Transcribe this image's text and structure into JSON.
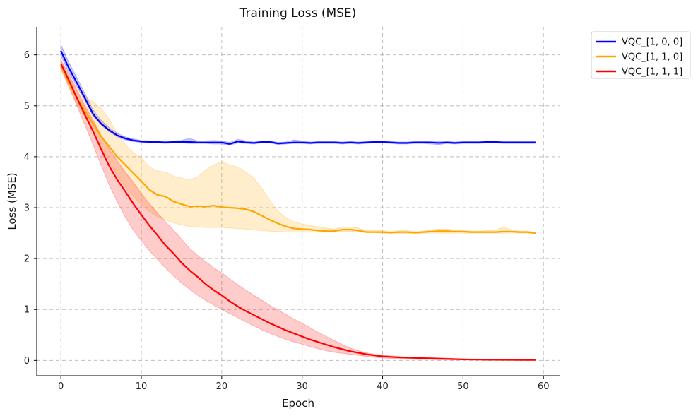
{
  "chart_data": {
    "type": "line",
    "title": "Training Loss (MSE)",
    "xlabel": "Epoch",
    "ylabel": "Loss (MSE)",
    "xlim": [
      -3,
      62
    ],
    "ylim": [
      -0.3,
      6.55
    ],
    "xticks": [
      0,
      10,
      20,
      30,
      40,
      50,
      60
    ],
    "yticks": [
      0,
      1,
      2,
      3,
      4,
      5,
      6
    ],
    "grid": true,
    "legend_position": "outside-top-right",
    "x": [
      0,
      1,
      2,
      3,
      4,
      5,
      6,
      7,
      8,
      9,
      10,
      11,
      12,
      13,
      14,
      15,
      16,
      17,
      18,
      19,
      20,
      21,
      22,
      23,
      24,
      25,
      26,
      27,
      28,
      29,
      30,
      31,
      32,
      33,
      34,
      35,
      36,
      37,
      38,
      39,
      40,
      41,
      42,
      43,
      44,
      45,
      46,
      47,
      48,
      49,
      50,
      51,
      52,
      53,
      54,
      55,
      56,
      57,
      58,
      59
    ],
    "series": [
      {
        "name": "VQC_[1, 0, 0]",
        "color": "#0000ff",
        "values": [
          6.08,
          5.74,
          5.45,
          5.15,
          4.84,
          4.65,
          4.52,
          4.42,
          4.36,
          4.32,
          4.3,
          4.29,
          4.29,
          4.28,
          4.29,
          4.29,
          4.29,
          4.28,
          4.28,
          4.28,
          4.28,
          4.25,
          4.3,
          4.28,
          4.27,
          4.29,
          4.29,
          4.26,
          4.27,
          4.28,
          4.28,
          4.27,
          4.28,
          4.28,
          4.28,
          4.27,
          4.28,
          4.27,
          4.28,
          4.29,
          4.29,
          4.28,
          4.27,
          4.27,
          4.28,
          4.28,
          4.28,
          4.27,
          4.28,
          4.27,
          4.28,
          4.28,
          4.28,
          4.29,
          4.29,
          4.28,
          4.28,
          4.28,
          4.28,
          4.28
        ],
        "lower": [
          5.98,
          5.65,
          5.38,
          5.1,
          4.8,
          4.62,
          4.49,
          4.39,
          4.33,
          4.3,
          4.28,
          4.27,
          4.27,
          4.26,
          4.27,
          4.27,
          4.26,
          4.26,
          4.26,
          4.25,
          4.25,
          4.23,
          4.27,
          4.26,
          4.25,
          4.27,
          4.27,
          4.24,
          4.25,
          4.26,
          4.26,
          4.25,
          4.26,
          4.26,
          4.26,
          4.25,
          4.26,
          4.25,
          4.26,
          4.27,
          4.27,
          4.26,
          4.25,
          4.25,
          4.26,
          4.26,
          4.25,
          4.24,
          4.26,
          4.25,
          4.26,
          4.26,
          4.26,
          4.27,
          4.27,
          4.26,
          4.26,
          4.26,
          4.26,
          4.26
        ],
        "upper": [
          6.2,
          5.85,
          5.55,
          5.24,
          4.92,
          4.72,
          4.57,
          4.46,
          4.39,
          4.35,
          4.32,
          4.31,
          4.31,
          4.3,
          4.31,
          4.32,
          4.36,
          4.31,
          4.31,
          4.32,
          4.31,
          4.28,
          4.34,
          4.31,
          4.29,
          4.31,
          4.31,
          4.28,
          4.29,
          4.33,
          4.31,
          4.29,
          4.3,
          4.3,
          4.3,
          4.29,
          4.3,
          4.29,
          4.3,
          4.31,
          4.31,
          4.3,
          4.29,
          4.29,
          4.3,
          4.3,
          4.31,
          4.3,
          4.3,
          4.29,
          4.3,
          4.3,
          4.3,
          4.31,
          4.31,
          4.3,
          4.3,
          4.3,
          4.3,
          4.3
        ]
      },
      {
        "name": "VQC_[1, 1, 0]",
        "color": "#ffa500",
        "values": [
          5.8,
          5.45,
          5.15,
          4.9,
          4.65,
          4.4,
          4.2,
          4.0,
          3.84,
          3.68,
          3.52,
          3.35,
          3.25,
          3.22,
          3.12,
          3.07,
          3.02,
          3.03,
          3.02,
          3.04,
          3.01,
          3.0,
          2.99,
          2.97,
          2.92,
          2.84,
          2.76,
          2.69,
          2.63,
          2.59,
          2.58,
          2.57,
          2.55,
          2.54,
          2.54,
          2.57,
          2.57,
          2.55,
          2.52,
          2.52,
          2.52,
          2.51,
          2.52,
          2.52,
          2.51,
          2.52,
          2.53,
          2.54,
          2.54,
          2.53,
          2.53,
          2.52,
          2.52,
          2.52,
          2.52,
          2.53,
          2.53,
          2.52,
          2.52,
          2.5
        ],
        "lower": [
          5.72,
          5.35,
          5.05,
          4.78,
          4.5,
          4.2,
          3.92,
          3.62,
          3.4,
          3.22,
          3.06,
          2.92,
          2.82,
          2.76,
          2.7,
          2.66,
          2.63,
          2.62,
          2.61,
          2.61,
          2.61,
          2.6,
          2.59,
          2.58,
          2.56,
          2.55,
          2.54,
          2.53,
          2.52,
          2.52,
          2.52,
          2.52,
          2.52,
          2.52,
          2.52,
          2.53,
          2.53,
          2.52,
          2.51,
          2.51,
          2.5,
          2.5,
          2.5,
          2.49,
          2.49,
          2.5,
          2.5,
          2.5,
          2.5,
          2.5,
          2.5,
          2.5,
          2.5,
          2.5,
          2.5,
          2.5,
          2.51,
          2.5,
          2.5,
          2.49
        ],
        "upper": [
          5.88,
          5.58,
          5.34,
          5.18,
          5.08,
          4.95,
          4.74,
          4.45,
          4.24,
          4.08,
          3.98,
          3.8,
          3.72,
          3.7,
          3.62,
          3.58,
          3.55,
          3.6,
          3.74,
          3.84,
          3.9,
          3.84,
          3.8,
          3.7,
          3.58,
          3.38,
          3.14,
          2.93,
          2.8,
          2.72,
          2.68,
          2.65,
          2.62,
          2.6,
          2.58,
          2.62,
          2.62,
          2.6,
          2.55,
          2.55,
          2.55,
          2.53,
          2.55,
          2.55,
          2.53,
          2.54,
          2.56,
          2.58,
          2.58,
          2.56,
          2.56,
          2.54,
          2.54,
          2.55,
          2.55,
          2.62,
          2.57,
          2.54,
          2.54,
          2.52
        ]
      },
      {
        "name": "VQC_[1, 1, 1]",
        "color": "#ff0000",
        "values": [
          5.83,
          5.5,
          5.15,
          4.82,
          4.5,
          4.15,
          3.82,
          3.55,
          3.32,
          3.08,
          2.86,
          2.65,
          2.46,
          2.26,
          2.1,
          1.92,
          1.77,
          1.64,
          1.5,
          1.38,
          1.28,
          1.16,
          1.06,
          0.97,
          0.89,
          0.81,
          0.73,
          0.66,
          0.59,
          0.53,
          0.47,
          0.41,
          0.36,
          0.31,
          0.26,
          0.22,
          0.18,
          0.15,
          0.12,
          0.1,
          0.08,
          0.07,
          0.06,
          0.055,
          0.05,
          0.045,
          0.04,
          0.035,
          0.03,
          0.025,
          0.02,
          0.018,
          0.016,
          0.014,
          0.013,
          0.012,
          0.011,
          0.01,
          0.01,
          0.01
        ],
        "lower": [
          5.75,
          5.38,
          5.0,
          4.62,
          4.24,
          3.84,
          3.45,
          3.12,
          2.82,
          2.56,
          2.35,
          2.16,
          1.98,
          1.82,
          1.66,
          1.52,
          1.4,
          1.28,
          1.18,
          1.09,
          1.0,
          0.92,
          0.84,
          0.76,
          0.68,
          0.6,
          0.53,
          0.47,
          0.41,
          0.36,
          0.32,
          0.27,
          0.23,
          0.19,
          0.16,
          0.14,
          0.12,
          0.1,
          0.08,
          0.06,
          0.05,
          0.04,
          0.03,
          0.03,
          0.02,
          0.02,
          0.02,
          0.01,
          0.01,
          0.01,
          0.01,
          0.01,
          0.01,
          0.01,
          0.005,
          0.005,
          0.005,
          0.005,
          0.005,
          0.005
        ],
        "upper": [
          5.9,
          5.62,
          5.3,
          5.0,
          4.72,
          4.42,
          4.15,
          3.92,
          3.7,
          3.5,
          3.28,
          3.08,
          2.9,
          2.72,
          2.56,
          2.38,
          2.2,
          2.06,
          1.94,
          1.82,
          1.72,
          1.6,
          1.49,
          1.38,
          1.28,
          1.18,
          1.08,
          0.99,
          0.9,
          0.81,
          0.73,
          0.64,
          0.55,
          0.47,
          0.39,
          0.31,
          0.24,
          0.19,
          0.15,
          0.12,
          0.1,
          0.09,
          0.08,
          0.07,
          0.065,
          0.06,
          0.055,
          0.05,
          0.045,
          0.04,
          0.035,
          0.03,
          0.025,
          0.022,
          0.02,
          0.018,
          0.016,
          0.015,
          0.015,
          0.015
        ]
      }
    ]
  }
}
